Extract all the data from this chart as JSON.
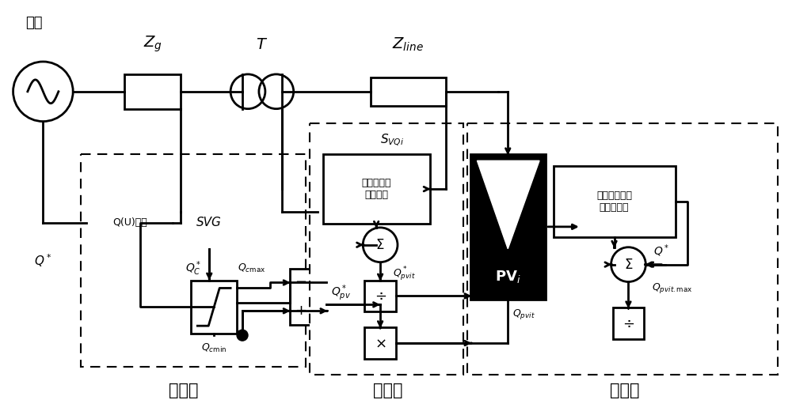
{
  "bg_color": "#ffffff",
  "line_color": "#000000",
  "fig_width": 10.0,
  "fig_height": 5.25,
  "labels": {
    "dianwang": "电网",
    "Zg": "$Z_g$",
    "T": "$T$",
    "Zline": "$Z_{line}$",
    "layer1": "第一层",
    "layer2": "第二层",
    "layer3": "第三层",
    "QU": "Q(U)策略",
    "SVG": "SVG",
    "calc_sens": "计算无功电\n压灵敏度",
    "PVi": "$\\mathbf{PV}_i$",
    "calc_limit": "计算单台逆变\n器无功极限",
    "SVQi": "$S_{VQi}$",
    "Qstar": "$Q^*$",
    "QC": "$Q_C^*$",
    "Qcmax": "$Q_{c\\mathrm{max}}$",
    "Qcmin": "$Q_{c\\mathrm{min}}$",
    "Qpv_star": "$Q_{pv}^*$",
    "Qpvit_star": "$Q_{pvit}^*$",
    "Qpvit": "$Q_{pvit}$",
    "Qpvit_max": "$Q_{pvit.\\mathrm{max}}$"
  }
}
